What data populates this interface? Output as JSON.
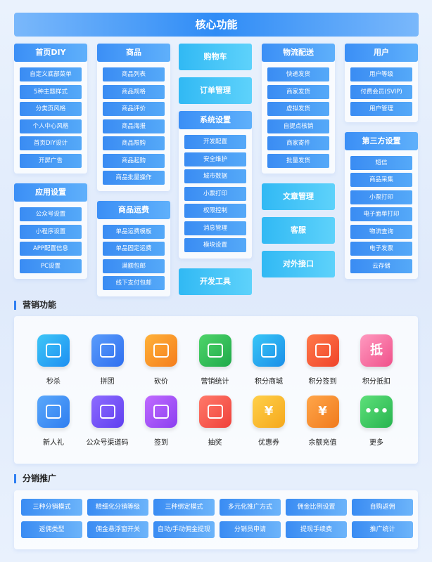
{
  "header": {
    "title": "核心功能"
  },
  "columns": [
    [
      {
        "title": "首页DIY",
        "items": [
          "自定义底部菜单",
          "5种主题样式",
          "分类页风格",
          "个人中心风格",
          "首页DIY设计",
          "开屏广告"
        ]
      },
      {
        "title": "应用设置",
        "items": [
          "公众号设置",
          "小程序设置",
          "APP配置信息",
          "PC设置"
        ]
      }
    ],
    [
      {
        "title": "商品",
        "items": [
          "商品列表",
          "商品规格",
          "商品评价",
          "商品海报",
          "商品限购",
          "商品起购",
          "商品批量操作"
        ]
      },
      {
        "title": "商品运费",
        "items": [
          "单品运费模板",
          "单品固定运费",
          "满额包邮",
          "线下支付包邮"
        ]
      }
    ],
    [
      {
        "title": "购物车"
      },
      {
        "title": "订单管理"
      },
      {
        "title": "系统设置",
        "items": [
          "开发配置",
          "安全维护",
          "城市数据",
          "小票打印",
          "权限控制",
          "消息管理",
          "模块设置"
        ]
      },
      {
        "title": "开发工具"
      }
    ],
    [
      {
        "title": "物流配送",
        "items": [
          "快递发货",
          "商家发货",
          "虚拟发货",
          "自提点核销",
          "商家寄件",
          "批量发货"
        ]
      },
      {
        "title": "文章管理"
      },
      {
        "title": "客服"
      },
      {
        "title": "对外接口"
      }
    ],
    [
      {
        "title": "用户",
        "items": [
          "用户等级",
          "付费会员(SVIP)",
          "用户管理"
        ]
      },
      {
        "title": "第三方设置",
        "items": [
          "短信",
          "商品采集",
          "小票打印",
          "电子面单打印",
          "物流查询",
          "电子发票",
          "云存储"
        ]
      }
    ]
  ],
  "marketing": {
    "title": "营销功能",
    "items": [
      {
        "label": "秒杀"
      },
      {
        "label": "拼团"
      },
      {
        "label": "砍价"
      },
      {
        "label": "营销统计"
      },
      {
        "label": "积分商城"
      },
      {
        "label": "积分签到"
      },
      {
        "label": "积分抵扣",
        "icon_text": "抵"
      },
      {
        "label": "新人礼"
      },
      {
        "label": "公众号渠道码"
      },
      {
        "label": "签到"
      },
      {
        "label": "抽奖"
      },
      {
        "label": "优惠券",
        "icon_text": "¥"
      },
      {
        "label": "余额充值",
        "icon_text": "¥"
      },
      {
        "label": "更多",
        "icon_text": "•••"
      }
    ]
  },
  "distribution": {
    "title": "分销推广",
    "items": [
      "三种分销模式",
      "精细化分销等级",
      "三种绑定模式",
      "多元化推广方式",
      "佣金比例设置",
      "自购返佣",
      "返佣类型",
      "佣金悬浮窗开关",
      "自动/手动佣金提现",
      "分销员申请",
      "提现手续费",
      "推广统计"
    ]
  }
}
